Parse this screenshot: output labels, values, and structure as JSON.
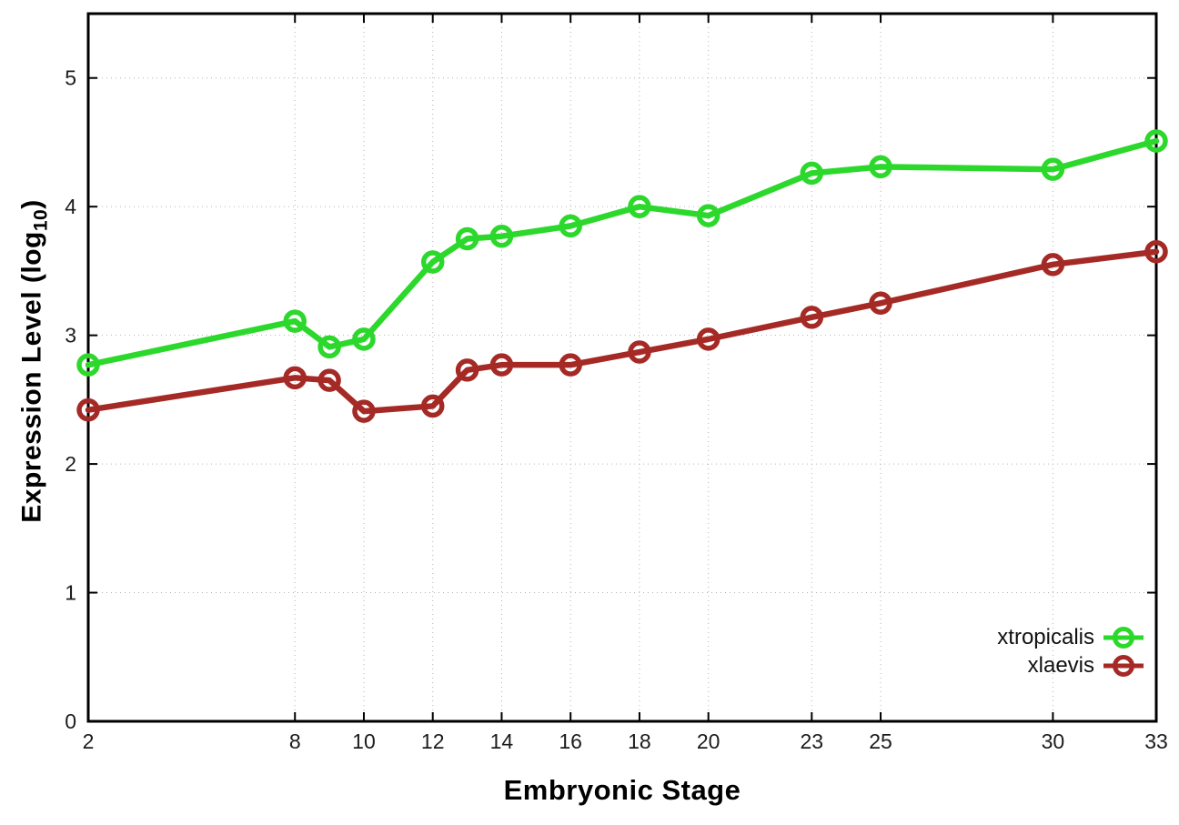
{
  "figure": {
    "background": "#ffffff",
    "x_axis_title": "Embryonic Stage",
    "y_axis_title_main": "Expression Level (log",
    "y_axis_title_sub": "10",
    "y_axis_title_close": ")"
  },
  "chart_data": {
    "type": "line",
    "title": "",
    "xlabel": "Embryonic Stage",
    "ylabel": "Expression Level (log10)",
    "x": [
      2,
      8,
      9,
      10,
      12,
      13,
      14,
      16,
      18,
      20,
      23,
      25,
      30,
      33
    ],
    "x_ticks": [
      2,
      8,
      10,
      12,
      14,
      16,
      18,
      20,
      23,
      25,
      30,
      33
    ],
    "x_tick_labels": [
      "2",
      "8",
      "10",
      "12",
      "14",
      "16",
      "18",
      "20",
      "23",
      "25",
      "30",
      "33"
    ],
    "y_ticks": [
      0,
      1,
      2,
      3,
      4,
      5
    ],
    "y_tick_labels": [
      "0",
      "1",
      "2",
      "3",
      "4",
      "5"
    ],
    "xlim": [
      2,
      33
    ],
    "ylim": [
      0,
      5.5
    ],
    "grid": true,
    "grid_style": "dotted",
    "legend_position": "inside-bottom-right",
    "marker": "open-circle",
    "axis_color": "#000000",
    "grid_color": "#b3b3b3",
    "tick_label_color": "#1c1c1c",
    "series": [
      {
        "name": "xtropicalis",
        "color": "#2bd82b",
        "values": [
          2.77,
          3.11,
          2.91,
          2.97,
          3.57,
          3.75,
          3.77,
          3.85,
          4.0,
          3.93,
          4.26,
          4.31,
          4.29,
          4.51
        ]
      },
      {
        "name": "xlaevis",
        "color": "#a52a26",
        "values": [
          2.42,
          2.67,
          2.65,
          2.41,
          2.45,
          2.73,
          2.77,
          2.77,
          2.87,
          2.97,
          3.14,
          3.25,
          3.55,
          3.65
        ]
      }
    ]
  }
}
